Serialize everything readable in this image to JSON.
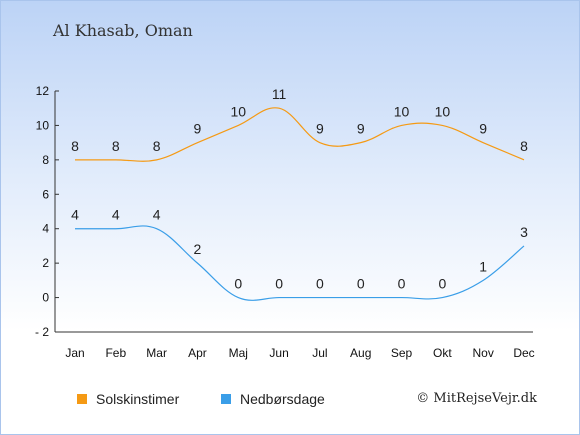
{
  "chart_data": {
    "type": "line",
    "title": "Al Khasab, Oman",
    "categories": [
      "Jan",
      "Feb",
      "Mar",
      "Apr",
      "Maj",
      "Jun",
      "Jul",
      "Aug",
      "Sep",
      "Okt",
      "Nov",
      "Dec"
    ],
    "series": [
      {
        "name": "Solskinstimer",
        "color": "#f59a14",
        "values": [
          8,
          8,
          8,
          9,
          10,
          11,
          9,
          9,
          10,
          10,
          9,
          8
        ]
      },
      {
        "name": "Nedbørsdage",
        "color": "#3a9ee8",
        "values": [
          4,
          4,
          4,
          2,
          0,
          0,
          0,
          0,
          0,
          0,
          1,
          3
        ]
      }
    ],
    "ylim": [
      -2,
      12
    ],
    "yticks": [
      -2,
      0,
      2,
      4,
      6,
      8,
      10,
      12
    ],
    "grid": false,
    "legend_position": "bottom-left",
    "copyright": "© MitRejseVejr.dk"
  }
}
